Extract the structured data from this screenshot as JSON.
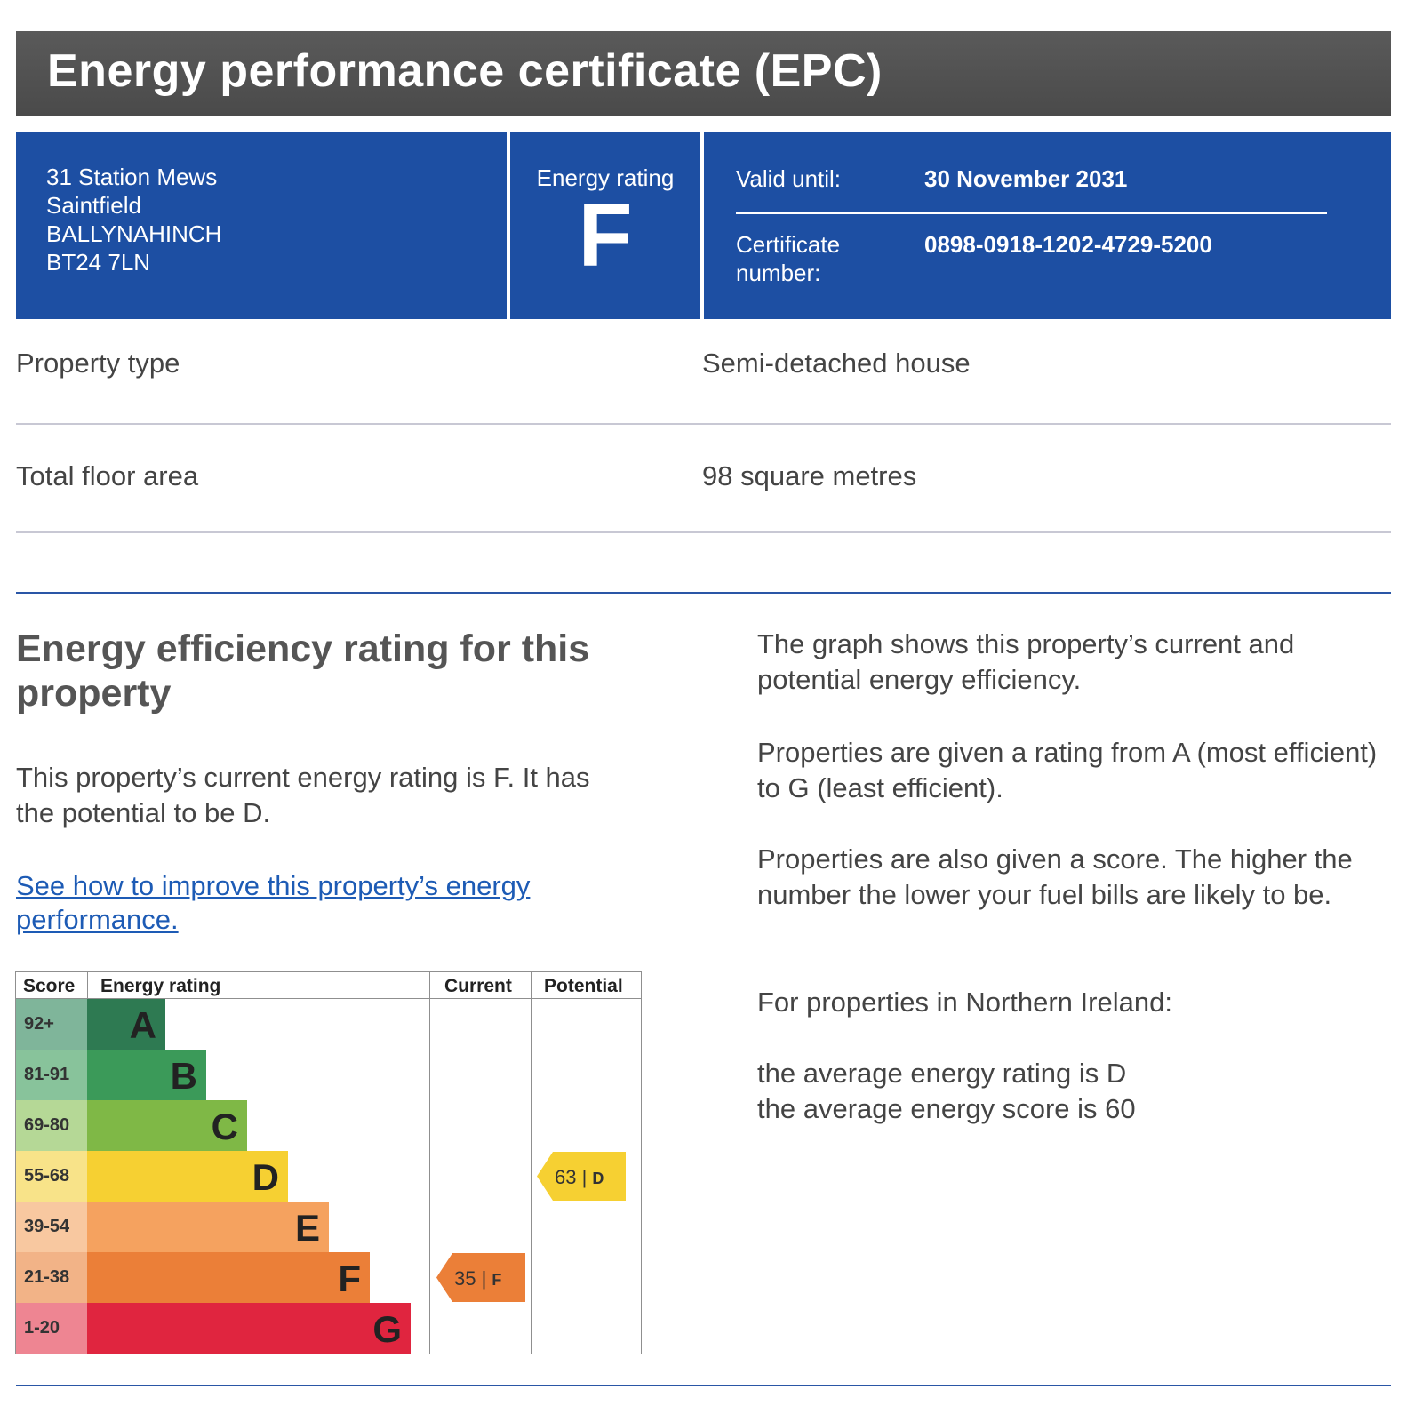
{
  "header": {
    "title": "Energy performance certificate (EPC)"
  },
  "address": [
    "31 Station Mews",
    "Saintfield",
    "BALLYNAHINCH",
    "BT24 7LN"
  ],
  "energy_rating_box": {
    "label": "Energy rating",
    "value": "F"
  },
  "certificate": {
    "valid_until_label": "Valid until:",
    "valid_until_value": "30 November 2031",
    "number_label_1": "Certificate",
    "number_label_2": "number:",
    "number_value": "0898-0918-1202-4729-5200"
  },
  "property": {
    "type_label": "Property type",
    "type_value": "Semi-detached house",
    "area_label": "Total floor area",
    "area_value": "98 square metres"
  },
  "efficiency": {
    "title": "Energy efficiency rating for this property",
    "current_text": "This property’s current energy rating is F. It has the potential to be D.",
    "improve_link": "See how to improve this property’s energy performance."
  },
  "info": {
    "p1": "The graph shows this property’s current and potential energy efficiency.",
    "p2": "Properties are given a rating from A (most efficient) to G (least efficient).",
    "p3": "Properties are also given a score. The higher the number the lower your fuel bills are likely to be.",
    "p4": "For properties in Northern Ireland:",
    "p5": "the average energy rating is D",
    "p6": "the average energy score is 60"
  },
  "chart_data": {
    "type": "table",
    "headers": {
      "score": "Score",
      "rating": "Energy rating",
      "current": "Current",
      "potential": "Potential"
    },
    "bands": [
      {
        "score": "92+",
        "letter": "A",
        "color": "#2e7a52",
        "score_bg": "#7fb59a"
      },
      {
        "score": "81-91",
        "letter": "B",
        "color": "#3b9a59",
        "score_bg": "#88c39b"
      },
      {
        "score": "69-80",
        "letter": "C",
        "color": "#7fb846",
        "score_bg": "#b5d896"
      },
      {
        "score": "55-68",
        "letter": "D",
        "color": "#f6d032",
        "score_bg": "#f8e389"
      },
      {
        "score": "39-54",
        "letter": "E",
        "color": "#f5a25f",
        "score_bg": "#f8c8a0"
      },
      {
        "score": "21-38",
        "letter": "F",
        "color": "#eb7f38",
        "score_bg": "#f2b387"
      },
      {
        "score": "1-20",
        "letter": "G",
        "color": "#e0253f",
        "score_bg": "#ee8592"
      }
    ],
    "current": {
      "score": 35,
      "letter": "F",
      "color": "#eb7f38"
    },
    "potential": {
      "score": 63,
      "letter": "D",
      "color": "#f6d032"
    }
  }
}
